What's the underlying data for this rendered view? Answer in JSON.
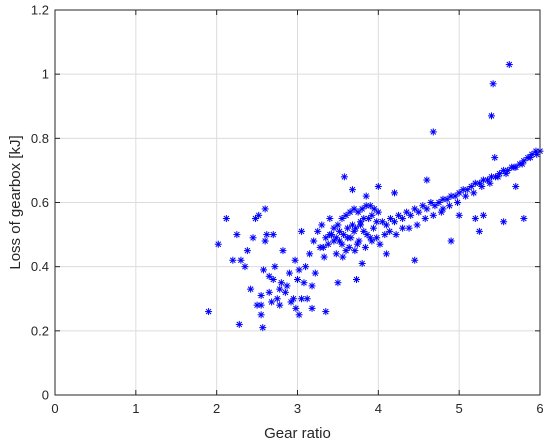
{
  "chart_data": {
    "type": "scatter",
    "title": "",
    "xlabel": "Gear ratio",
    "ylabel": "Loss of gearbox [kJ]",
    "xlim": [
      0,
      6
    ],
    "ylim": [
      0,
      1.2
    ],
    "xticks": [
      0,
      1,
      2,
      3,
      4,
      5,
      6
    ],
    "yticks": [
      0,
      0.2,
      0.4,
      0.6,
      0.8,
      1,
      1.2
    ],
    "xtick_labels": [
      "0",
      "1",
      "2",
      "3",
      "4",
      "5",
      "6"
    ],
    "ytick_labels": [
      "0",
      "0.2",
      "0.4",
      "0.6",
      "0.8",
      "1",
      "1.2"
    ],
    "grid": true,
    "marker": "asterisk",
    "marker_color": "#0000ff",
    "series": [
      {
        "x": [
          1.9,
          2.02,
          2.12,
          2.2,
          2.28,
          2.3,
          2.35,
          2.38,
          2.42,
          2.48,
          2.5,
          2.52,
          2.55,
          2.57,
          2.6,
          2.58,
          2.62,
          2.65,
          2.68,
          2.7,
          2.72,
          2.75,
          2.78,
          2.8,
          2.82,
          2.85,
          2.87,
          2.9,
          2.92,
          2.95,
          2.97,
          3.0,
          3.02,
          3.05,
          3.08,
          3.1,
          3.12,
          3.15,
          3.18,
          3.2,
          3.22,
          3.25,
          3.28,
          3.3,
          3.33,
          3.35,
          3.38,
          3.4,
          3.42,
          3.45,
          3.48,
          3.5,
          3.52,
          3.55,
          3.57,
          3.6,
          3.62,
          3.65,
          3.68,
          3.7,
          3.72,
          3.75,
          3.78,
          3.8,
          3.82,
          3.85,
          3.88,
          3.9,
          3.92,
          3.95,
          3.98,
          4.0,
          4.05,
          4.1,
          4.15,
          4.2,
          4.25,
          4.3,
          4.35,
          4.4,
          4.45,
          4.5,
          4.55,
          4.6,
          4.65,
          4.7,
          4.75,
          4.8,
          4.85,
          4.9,
          4.95,
          5.0,
          5.05,
          5.1,
          5.15,
          5.2,
          5.25,
          5.3,
          5.35,
          5.4,
          5.45,
          5.5,
          5.55,
          5.6,
          5.65,
          5.7,
          5.75,
          5.8,
          5.85,
          5.9,
          5.95,
          6.0,
          2.25,
          2.45,
          2.6,
          2.55,
          2.7,
          2.98,
          3.05,
          3.58,
          3.68,
          3.73,
          3.85,
          4.0,
          4.2,
          4.6,
          4.68,
          4.8,
          5.0,
          5.2,
          5.3,
          5.4,
          5.42,
          5.44,
          5.62,
          5.7,
          5.8,
          2.55,
          2.65,
          2.78,
          3.02,
          3.18,
          3.35,
          3.5,
          3.8,
          4.1,
          4.45,
          4.9,
          5.25,
          5.55,
          3.45,
          3.55,
          3.62,
          3.7,
          3.78,
          3.86,
          3.94,
          3.32,
          3.4,
          3.52,
          3.6,
          3.66,
          3.74,
          3.82,
          3.9,
          3.48,
          3.56,
          3.64,
          3.71,
          3.76,
          3.84,
          3.92,
          3.98,
          4.02,
          4.08,
          4.14,
          4.22,
          4.3,
          4.38,
          4.48,
          4.58,
          4.68,
          4.78,
          4.88,
          4.98,
          5.08,
          5.18,
          5.28,
          5.38,
          5.48,
          5.58,
          5.68,
          5.78,
          5.88,
          5.96
        ],
        "y": [
          0.26,
          0.47,
          0.55,
          0.42,
          0.22,
          0.42,
          0.4,
          0.45,
          0.33,
          0.55,
          0.28,
          0.56,
          0.31,
          0.21,
          0.58,
          0.39,
          0.5,
          0.32,
          0.29,
          0.36,
          0.4,
          0.3,
          0.33,
          0.35,
          0.45,
          0.32,
          0.34,
          0.38,
          0.29,
          0.3,
          0.42,
          0.36,
          0.25,
          0.51,
          0.35,
          0.4,
          0.3,
          0.44,
          0.34,
          0.48,
          0.38,
          0.51,
          0.46,
          0.53,
          0.43,
          0.49,
          0.47,
          0.55,
          0.5,
          0.52,
          0.49,
          0.53,
          0.51,
          0.55,
          0.5,
          0.56,
          0.52,
          0.57,
          0.53,
          0.58,
          0.52,
          0.57,
          0.54,
          0.58,
          0.55,
          0.59,
          0.55,
          0.59,
          0.56,
          0.58,
          0.54,
          0.57,
          0.54,
          0.53,
          0.55,
          0.54,
          0.56,
          0.55,
          0.57,
          0.56,
          0.58,
          0.57,
          0.59,
          0.58,
          0.6,
          0.59,
          0.6,
          0.61,
          0.61,
          0.62,
          0.62,
          0.63,
          0.64,
          0.64,
          0.65,
          0.66,
          0.66,
          0.67,
          0.67,
          0.68,
          0.68,
          0.69,
          0.7,
          0.7,
          0.71,
          0.71,
          0.72,
          0.73,
          0.74,
          0.75,
          0.76,
          0.76,
          0.5,
          0.49,
          0.48,
          0.28,
          0.5,
          0.27,
          0.3,
          0.68,
          0.64,
          0.36,
          0.62,
          0.65,
          0.63,
          0.67,
          0.82,
          0.58,
          0.56,
          0.55,
          0.56,
          0.87,
          0.97,
          0.74,
          1.03,
          0.65,
          0.55,
          0.25,
          0.37,
          0.28,
          0.39,
          0.27,
          0.26,
          0.35,
          0.41,
          0.44,
          0.42,
          0.48,
          0.51,
          0.54,
          0.48,
          0.47,
          0.49,
          0.51,
          0.53,
          0.5,
          0.52,
          0.46,
          0.5,
          0.48,
          0.45,
          0.49,
          0.47,
          0.51,
          0.49,
          0.44,
          0.43,
          0.46,
          0.45,
          0.48,
          0.46,
          0.48,
          0.49,
          0.47,
          0.5,
          0.51,
          0.5,
          0.52,
          0.52,
          0.53,
          0.55,
          0.56,
          0.57,
          0.59,
          0.6,
          0.62,
          0.63,
          0.65,
          0.66,
          0.68,
          0.69,
          0.71,
          0.72,
          0.74,
          0.75
        ]
      }
    ]
  }
}
